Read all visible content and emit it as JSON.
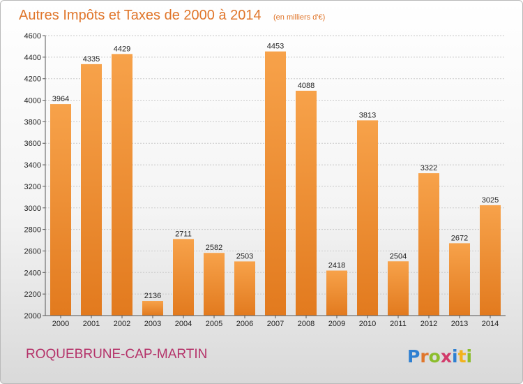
{
  "chart_data": {
    "type": "bar",
    "title": "Autres Impôts et Taxes de 2000 à 2014",
    "unit_note": "(en milliers d'€)",
    "categories": [
      "2000",
      "2001",
      "2002",
      "2003",
      "2004",
      "2005",
      "2006",
      "2007",
      "2008",
      "2009",
      "2010",
      "2011",
      "2012",
      "2013",
      "2014"
    ],
    "values": [
      3964,
      4335,
      4429,
      2136,
      2711,
      2582,
      2503,
      4453,
      4088,
      2418,
      3813,
      2504,
      3322,
      2672,
      3025
    ],
    "ylim": [
      2000,
      4600
    ],
    "yticks": [
      2000,
      2200,
      2400,
      2600,
      2800,
      3000,
      3200,
      3400,
      3600,
      3800,
      4000,
      4200,
      4400,
      4600
    ],
    "grid": true,
    "xlabel": "",
    "ylabel": "",
    "bar_color": "#f2933a"
  },
  "footer": {
    "city": "ROQUEBRUNE-CAP-MARTIN",
    "brand_letters": [
      "P",
      "r",
      "o",
      "x",
      "i",
      "t",
      "i"
    ],
    "brand_colors": [
      "#2e7fd1",
      "#e0762b",
      "#8bbd2c",
      "#d23b6b",
      "#2e7fd1",
      "#f2b21c",
      "#8bbd2c"
    ]
  }
}
